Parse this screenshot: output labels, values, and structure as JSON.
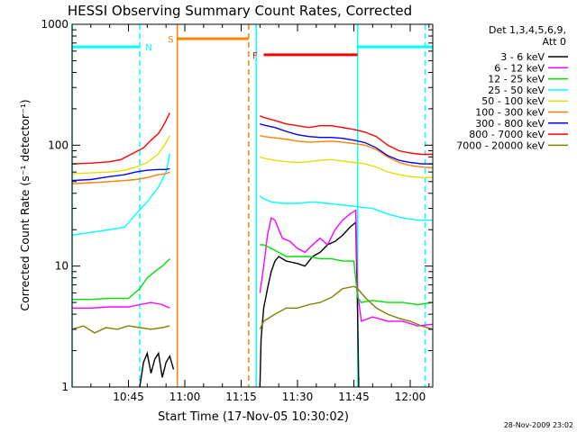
{
  "chart_data": {
    "type": "line",
    "title": "HESSI Observing Summary Count Rates, Corrected",
    "xlabel": "Start Time (17-Nov-05 10:30:02)",
    "ylabel": "Corrected Count Rate (s⁻¹ detector⁻¹)",
    "yscale": "log",
    "ylim": [
      1,
      1000
    ],
    "xlim_minutes_after_1030": [
      0,
      96
    ],
    "x_tick_labels": [
      "10:45",
      "11:00",
      "11:15",
      "11:30",
      "11:45",
      "12:00"
    ],
    "x_tick_minutes": [
      15,
      30,
      45,
      60,
      75,
      90
    ],
    "y_tick_labels": [
      "1",
      "10",
      "100",
      "1000"
    ],
    "y_tick_values": [
      1,
      10,
      100,
      1000
    ],
    "legend_header": [
      "Det 1,3,4,5,6,9,",
      "Att 0"
    ],
    "legend_position": "right",
    "footer_date": "28-Nov-2009 23:02",
    "series": [
      {
        "name": "3 - 6 keV",
        "color": "#000000",
        "segments": [
          {
            "x": [
              18,
              19,
              20,
              21,
              22,
              23,
              24,
              25,
              26,
              27
            ],
            "y": [
              1,
              1.6,
              1.9,
              1.3,
              1.7,
              1.9,
              1.2,
              1.6,
              1.8,
              1.4
            ]
          },
          {
            "x": [
              50,
              50.3,
              51,
              52,
              53,
              54,
              55,
              57,
              60,
              62,
              64,
              66,
              68,
              70,
              72,
              74,
              75.5,
              76,
              76.3
            ],
            "y": [
              1,
              2.5,
              4.5,
              6.5,
              9,
              11,
              12,
              11,
              10.5,
              10,
              12,
              13,
              15,
              16,
              18,
              21,
              23,
              4,
              1
            ]
          }
        ]
      },
      {
        "name": "6 - 12 keV",
        "color": "#ff00ff",
        "segments": [
          {
            "x": [
              0,
              5,
              10,
              15,
              18,
              21,
              24,
              26
            ],
            "y": [
              4.5,
              4.5,
              4.6,
              4.6,
              4.8,
              5,
              4.8,
              4.5
            ]
          },
          {
            "x": [
              50,
              51,
              52,
              53,
              54,
              55,
              56,
              58,
              60,
              62,
              64,
              66,
              68,
              70,
              72,
              74,
              75.5,
              76,
              77,
              80,
              84,
              88,
              92,
              96
            ],
            "y": [
              6,
              10,
              18,
              25,
              24,
              20,
              17,
              16,
              14,
              13,
              15,
              17,
              15,
              20,
              24,
              27,
              29,
              6,
              3.5,
              3.8,
              3.5,
              3.5,
              3.2,
              3.3
            ]
          }
        ]
      },
      {
        "name": "12 - 25 keV",
        "color": "#00e000",
        "segments": [
          {
            "x": [
              0,
              5,
              10,
              15,
              18,
              20,
              22,
              24,
              26
            ],
            "y": [
              5.3,
              5.3,
              5.4,
              5.4,
              6.5,
              8,
              9,
              10,
              11.5
            ]
          },
          {
            "x": [
              50,
              51,
              53,
              55,
              57,
              60,
              63,
              66,
              69,
              72,
              75,
              76,
              77,
              80,
              84,
              88,
              92,
              96
            ],
            "y": [
              15,
              15,
              14,
              13,
              12,
              12,
              12,
              11.5,
              11.5,
              11,
              11,
              5.5,
              5,
              5.2,
              5,
              5,
              4.8,
              5
            ]
          }
        ]
      },
      {
        "name": "25 - 50 keV",
        "color": "#00ffff",
        "segments": [
          {
            "x": [
              0,
              5,
              10,
              14,
              17,
              20,
              23,
              25,
              26
            ],
            "y": [
              18,
              19,
              20,
              21,
              27,
              34,
              45,
              60,
              85
            ]
          },
          {
            "x": [
              50,
              51,
              53,
              56,
              60,
              64,
              68,
              72,
              76,
              80,
              84,
              88,
              92,
              96
            ],
            "y": [
              38,
              36,
              34,
              33,
              33,
              34,
              33,
              32,
              31,
              30,
              27,
              25,
              24,
              24
            ]
          }
        ]
      },
      {
        "name": "50 - 100 keV",
        "color": "#e0e000",
        "segments": [
          {
            "x": [
              0,
              5,
              10,
              14,
              17,
              20,
              23,
              25,
              26
            ],
            "y": [
              58,
              59,
              60,
              62,
              66,
              72,
              85,
              105,
              120
            ]
          },
          {
            "x": [
              50,
              51,
              54,
              57,
              60,
              63,
              66,
              69,
              72,
              75,
              78,
              81,
              84,
              87,
              90,
              93,
              96
            ],
            "y": [
              80,
              78,
              75,
              73,
              72,
              73,
              75,
              76,
              74,
              72,
              70,
              66,
              60,
              57,
              55,
              54,
              54
            ]
          }
        ]
      },
      {
        "name": "100 - 300 keV",
        "color": "#ff8000",
        "segments": [
          {
            "x": [
              0,
              5,
              10,
              14,
              17,
              20,
              23,
              25,
              26
            ],
            "y": [
              48,
              49,
              50,
              51,
              52,
              54,
              57,
              58,
              60
            ]
          },
          {
            "x": [
              50,
              51,
              54,
              57,
              60,
              63,
              66,
              69,
              72,
              75,
              78,
              81,
              84,
              87,
              90,
              93,
              96
            ],
            "y": [
              120,
              118,
              115,
              112,
              108,
              106,
              107,
              108,
              106,
              103,
              100,
              92,
              80,
              72,
              68,
              66,
              65
            ]
          }
        ]
      },
      {
        "name": "300 - 800 keV",
        "color": "#0000ff",
        "segments": [
          {
            "x": [
              0,
              5,
              10,
              14,
              17,
              20,
              23,
              25,
              26
            ],
            "y": [
              51,
              52,
              55,
              57,
              60,
              62,
              63,
              63,
              64
            ]
          },
          {
            "x": [
              50,
              51,
              54,
              57,
              60,
              63,
              66,
              69,
              72,
              75,
              78,
              81,
              84,
              87,
              90,
              93,
              96
            ],
            "y": [
              150,
              147,
              140,
              130,
              122,
              118,
              116,
              116,
              114,
              110,
              105,
              95,
              82,
              75,
              72,
              70,
              70
            ]
          }
        ]
      },
      {
        "name": "800 - 7000 keV",
        "color": "#ff0000",
        "segments": [
          {
            "x": [
              0,
              5,
              10,
              13,
              16,
              19,
              21,
              23,
              24,
              25,
              26
            ],
            "y": [
              70,
              71,
              73,
              76,
              85,
              95,
              110,
              125,
              140,
              160,
              185
            ]
          },
          {
            "x": [
              50,
              51,
              54,
              57,
              60,
              63,
              66,
              69,
              72,
              75,
              78,
              81,
              84,
              87,
              90,
              93,
              96
            ],
            "y": [
              175,
              170,
              160,
              150,
              145,
              140,
              145,
              145,
              140,
              135,
              128,
              118,
              100,
              90,
              86,
              84,
              84
            ]
          }
        ]
      },
      {
        "name": "7000 - 20000 keV",
        "color": "#808000",
        "segments": [
          {
            "x": [
              0,
              3,
              6,
              9,
              12,
              15,
              18,
              21,
              24,
              26
            ],
            "y": [
              3,
              3.2,
              2.8,
              3.1,
              3,
              3.2,
              3.1,
              3,
              3.1,
              3.2
            ]
          },
          {
            "x": [
              50,
              51,
              54,
              57,
              60,
              63,
              66,
              69,
              72,
              75,
              76,
              78,
              81,
              84,
              87,
              90,
              93,
              96
            ],
            "y": [
              3,
              3.5,
              4,
              4.5,
              4.5,
              4.8,
              5,
              5.5,
              6.5,
              6.8,
              6.5,
              5.5,
              4.5,
              4,
              3.7,
              3.5,
              3.2,
              3
            ]
          }
        ]
      }
    ],
    "vertical_markers": [
      {
        "x": 0,
        "color": "#00ffff",
        "style": "solid"
      },
      {
        "x": 18,
        "color": "#00ffff",
        "style": "dashed"
      },
      {
        "x": 28,
        "color": "#ff8000",
        "style": "solid"
      },
      {
        "x": 47,
        "color": "#ff8000",
        "style": "dashed"
      },
      {
        "x": 49,
        "color": "#00ffff",
        "style": "solid"
      },
      {
        "x": 76,
        "color": "#00ffff",
        "style": "solid"
      },
      {
        "x": 94,
        "color": "#00ffff",
        "style": "dashed"
      }
    ],
    "bars": [
      {
        "x1": 0,
        "x2": 18,
        "y": 650,
        "color": "#00ffff",
        "label": "N",
        "label_x": 19.5
      },
      {
        "x1": 28,
        "x2": 47,
        "y": 760,
        "color": "#ff8000",
        "label": "S",
        "label_x": 25.5
      },
      {
        "x1": 51,
        "x2": 76,
        "y": 560,
        "color": "#ff0000",
        "label": "F",
        "label_x": 48
      },
      {
        "x1": 76,
        "x2": 96,
        "y": 650,
        "color": "#00ffff",
        "label": "",
        "label_x": 0
      }
    ]
  }
}
